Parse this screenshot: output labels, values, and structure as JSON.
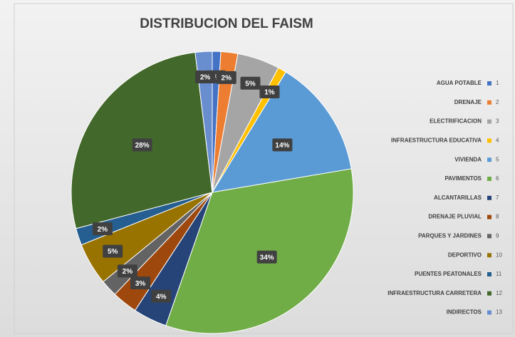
{
  "chart_data": {
    "type": "pie",
    "title": "DISTRIBUCION DEL FAISM",
    "categories": [
      "AGUA POTABLE",
      "DRENAJE",
      "ELECTRIFICACION",
      "INFRAESTRUCTURA EDUCATIVA",
      "VIVIENDA",
      "PAVIMENTOS",
      "ALCANTARILLAS",
      "DRENAJE PLUVIAL",
      "PARQUES Y JARDINES",
      "DEPORTIVO",
      "PUENTES PEATONALES",
      "INFRAESTRUCTURA CARRETERA",
      "INDIRECTOS"
    ],
    "legend_numbers": [
      "1",
      "2",
      "3",
      "4",
      "5",
      "6",
      "7",
      "8",
      "9",
      "10",
      "11",
      "12",
      "13"
    ],
    "values": [
      1,
      2,
      5,
      1,
      14,
      34,
      4,
      3,
      2,
      5,
      2,
      28,
      2
    ],
    "value_labels": [
      "1%",
      "2%",
      "5%",
      "1%",
      "14%",
      "34%",
      "4%",
      "3%",
      "2%",
      "5%",
      "2%",
      "28%",
      "2%"
    ],
    "colors": [
      "#4472c4",
      "#ed7d31",
      "#a5a5a5",
      "#ffc000",
      "#5b9bd5",
      "#70ad47",
      "#264478",
      "#9e480e",
      "#636363",
      "#997300",
      "#255e91",
      "#43682b",
      "#698ed0"
    ],
    "legend": "right"
  }
}
